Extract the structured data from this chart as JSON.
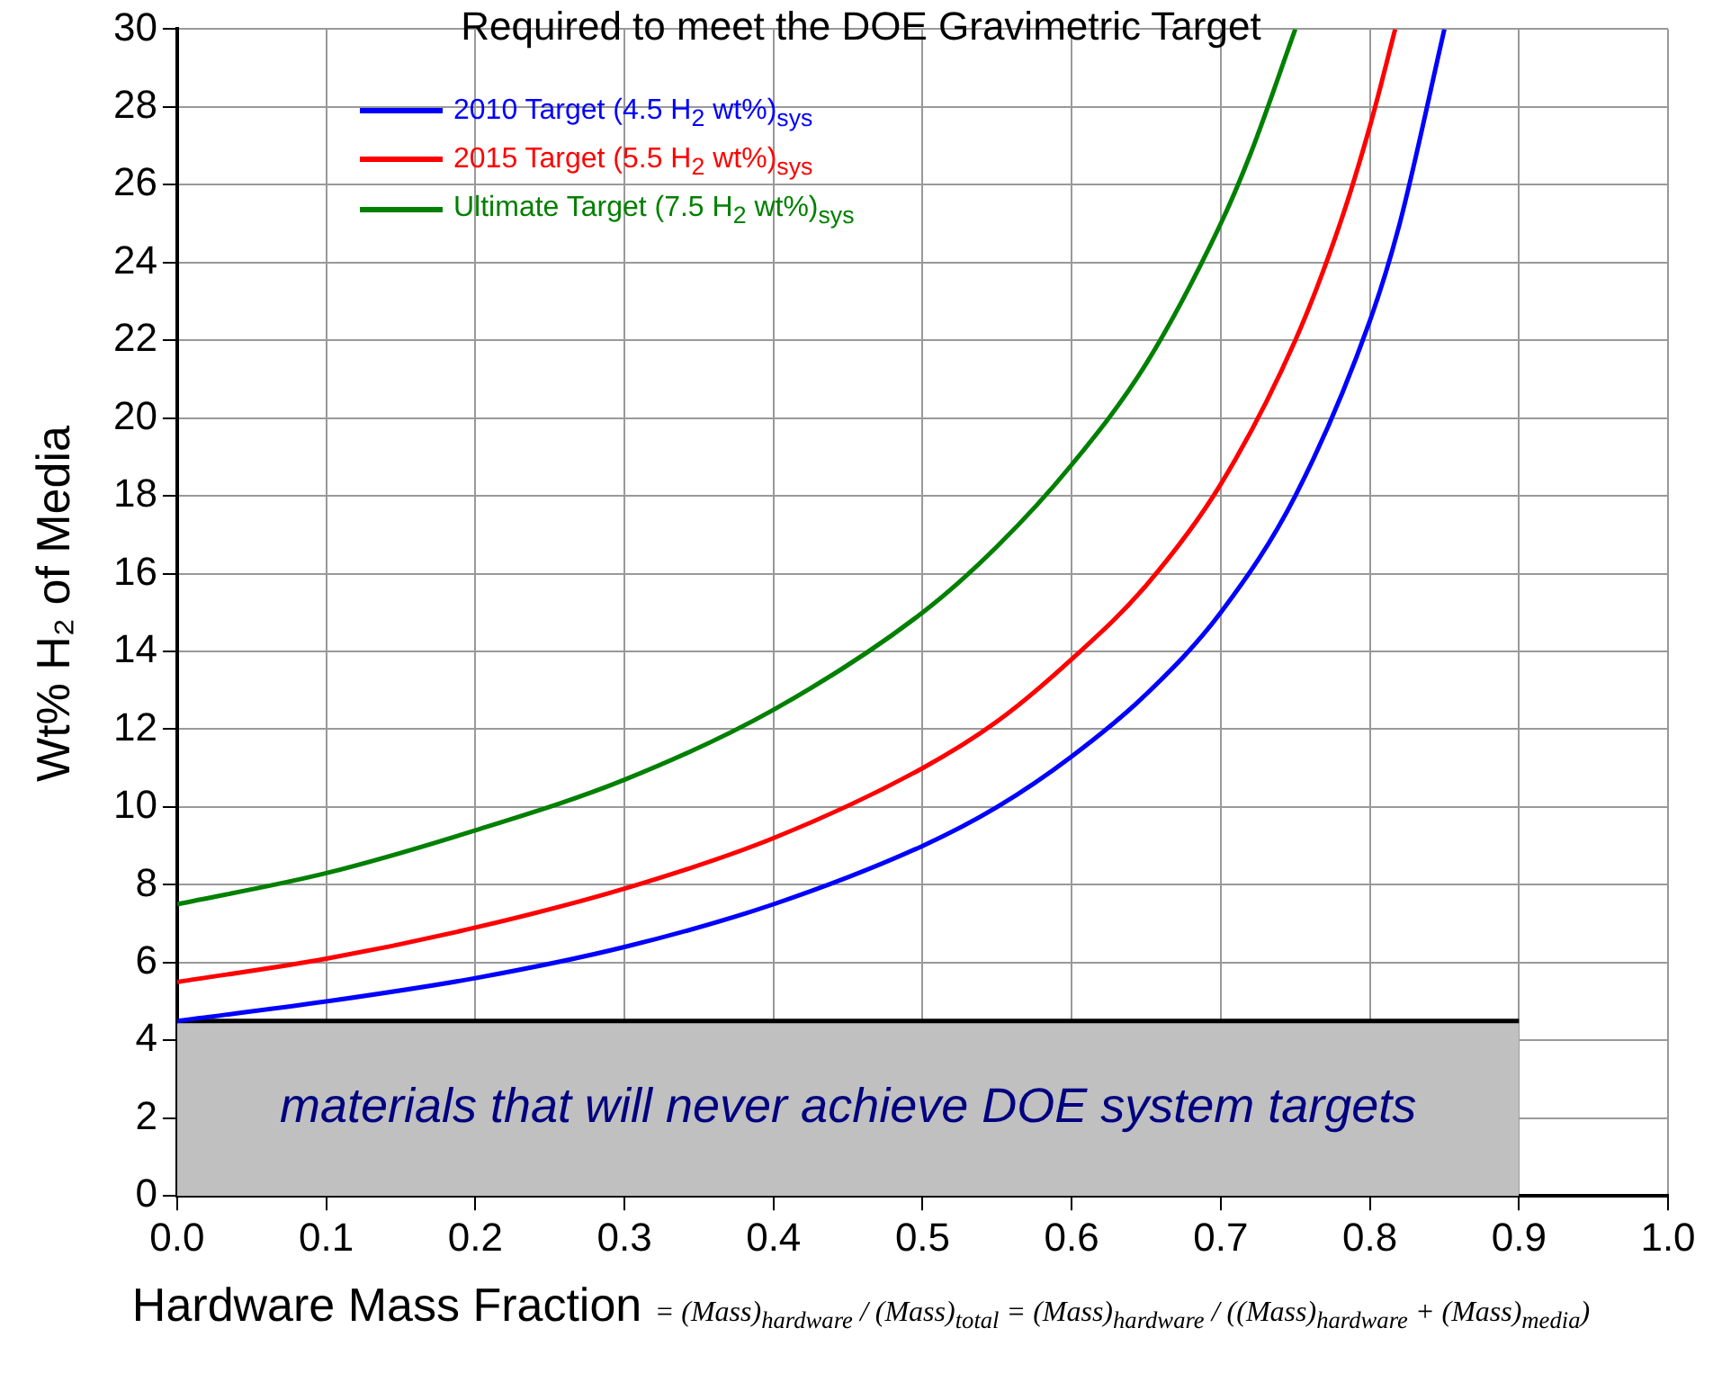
{
  "chart_data": {
    "type": "line",
    "title": "Required to meet the DOE Gravimetric Target",
    "xlabel": "Hardware Mass Fraction",
    "ylabel": "Wt% H₂ of Media",
    "xlim": [
      0,
      1
    ],
    "xticks": [
      {
        "value": 0,
        "label": "0.0"
      },
      0.1,
      0.2,
      0.3,
      0.4,
      0.5,
      0.6,
      0.7,
      0.8,
      0.9,
      {
        "value": 1,
        "label": "1.0"
      }
    ],
    "ylim": [
      0,
      30
    ],
    "yticks": [
      0,
      2,
      4,
      6,
      8,
      10,
      12,
      14,
      16,
      18,
      20,
      22,
      24,
      26,
      28,
      30
    ],
    "grid": true,
    "legend": "top left",
    "marker": "none",
    "line_style": "solid",
    "series": [
      {
        "name": "2010 Target (4.5 H$_{2}$ wt%)$_{sys}$",
        "color": "#0000ff",
        "x": [
          0,
          0.1,
          0.2,
          0.3,
          0.4,
          0.5,
          0.55,
          0.6,
          0.65,
          0.7,
          0.75,
          0.8,
          0.82,
          0.85
        ],
        "values": [
          4.5,
          5.0,
          5.6,
          6.4,
          7.5,
          9.0,
          10.0,
          11.3,
          12.9,
          15.0,
          18.0,
          22.5,
          25.0,
          30.0
        ]
      },
      {
        "name": "2015 Target (5.5 H$_{2}$ wt%)$_{sys}$",
        "color": "#ff0000",
        "x": [
          0,
          0.1,
          0.2,
          0.3,
          0.4,
          0.5,
          0.55,
          0.6,
          0.65,
          0.7,
          0.75,
          0.78,
          0.8,
          0.817
        ],
        "values": [
          5.5,
          6.1,
          6.9,
          7.9,
          9.2,
          11.0,
          12.2,
          13.8,
          15.7,
          18.3,
          22.0,
          25.0,
          27.5,
          30.0
        ]
      },
      {
        "name": "Ultimate Target (7.5 H$_{2}$ wt%)$_{sys}$",
        "color": "#008000",
        "x": [
          0,
          0.1,
          0.2,
          0.3,
          0.4,
          0.5,
          0.55,
          0.6,
          0.65,
          0.7,
          0.72,
          0.75
        ],
        "values": [
          7.5,
          8.3,
          9.4,
          10.7,
          12.5,
          15.0,
          16.7,
          18.8,
          21.4,
          25.0,
          26.8,
          30.0
        ]
      },
      {
        "type": "area",
        "color": "#c0c0c0",
        "x": [
          0,
          0.9
        ],
        "values": [
          4.5,
          4.5
        ]
      }
    ],
    "annotations": [
      "materials that will never achieve DOE system targets",
      "= (Mass)$_{hardware}$ / (Mass)$_{total}$ = (Mass)$_{hardware}$ / ((Mass)$_{hardware}$ + (Mass)$_{media}$)"
    ]
  }
}
